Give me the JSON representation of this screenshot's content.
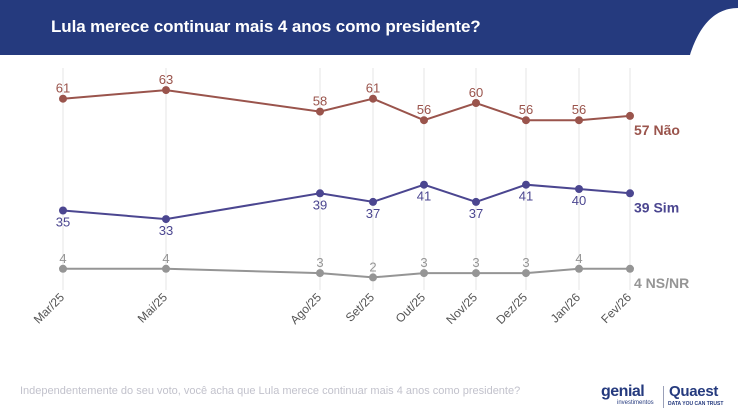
{
  "header": {
    "title": "Lula merece continuar mais 4 anos como presidente?"
  },
  "footnote": "Independentemente do seu voto, você acha que Lula merece continuar mais 4 anos como presidente?",
  "logos": {
    "genial": {
      "word": "genial",
      "sub": "investimentos"
    },
    "quaest": {
      "word": "Quaest",
      "sub": "DATA YOU CAN TRUST"
    }
  },
  "colors": {
    "header_bg": "#253a7e",
    "nao": "#9a544c",
    "sim": "#4b4690",
    "nsnr": "#959595",
    "grid": "#e6e6e6"
  },
  "chart_data": {
    "type": "line",
    "x": [
      "Mar/25",
      "Mai/25",
      "Ago/25",
      "Set/25",
      "Out/25",
      "Nov/25",
      "Dez/25",
      "Jan/26",
      "Fev/26"
    ],
    "series": [
      {
        "name": "Não",
        "end_label": "57 Não",
        "color": "#9a544c",
        "values": [
          61,
          63,
          58,
          61,
          56,
          60,
          56,
          56,
          57
        ],
        "labels": [
          "61",
          "63",
          "58",
          "61",
          "56",
          "60",
          "56",
          "56",
          ""
        ]
      },
      {
        "name": "Sim",
        "end_label": "39 Sim",
        "color": "#4b4690",
        "values": [
          35,
          33,
          39,
          37,
          41,
          37,
          41,
          40,
          39
        ],
        "labels": [
          "35",
          "33",
          "39",
          "37",
          "41",
          "37",
          "41",
          "40",
          ""
        ]
      },
      {
        "name": "NS/NR",
        "end_label": "4 NS/NR",
        "color": "#959595",
        "values": [
          4,
          4,
          3,
          2,
          3,
          3,
          3,
          4,
          4
        ],
        "labels": [
          "4",
          "4",
          "3",
          "2",
          "3",
          "3",
          "3",
          "4",
          ""
        ]
      }
    ],
    "grid": true,
    "legend": "end-of-line labels"
  }
}
